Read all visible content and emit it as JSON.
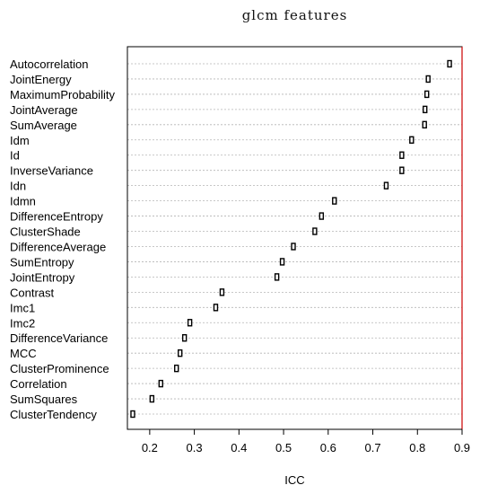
{
  "chart_data": {
    "type": "dotplot",
    "title": "glcm features",
    "xlabel": "ICC",
    "xlim": [
      0.15,
      0.9
    ],
    "xticks": [
      0.2,
      0.3,
      0.4,
      0.5,
      0.6,
      0.7,
      0.8,
      0.9
    ],
    "reference_line": {
      "x": 0.9,
      "color": "#cc0000"
    },
    "grid": "horizontal dotted",
    "categories": [
      "Autocorrelation",
      "JointEnergy",
      "MaximumProbability",
      "JointAverage",
      "SumAverage",
      "Idm",
      "Id",
      "InverseVariance",
      "Idn",
      "Idmn",
      "DifferenceEntropy",
      "ClusterShade",
      "DifferenceAverage",
      "SumEntropy",
      "JointEntropy",
      "Contrast",
      "Imc1",
      "Imc2",
      "DifferenceVariance",
      "MCC",
      "ClusterProminence",
      "Correlation",
      "SumSquares",
      "ClusterTendency"
    ],
    "values": [
      0.872,
      0.824,
      0.821,
      0.817,
      0.816,
      0.787,
      0.765,
      0.765,
      0.73,
      0.614,
      0.585,
      0.57,
      0.522,
      0.497,
      0.485,
      0.362,
      0.348,
      0.29,
      0.278,
      0.268,
      0.26,
      0.225,
      0.205,
      0.162
    ]
  }
}
